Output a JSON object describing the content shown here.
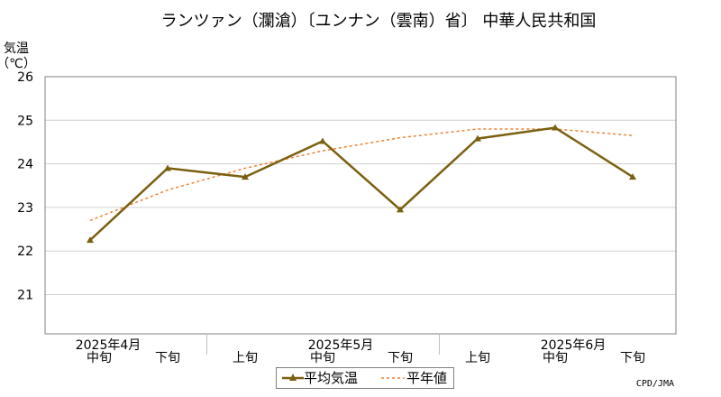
{
  "chart_data": {
    "type": "line",
    "title": "ランツァン（瀾滄）〔ユンナン（雲南）省〕 中華人民共和国",
    "ylabel": "気温",
    "yunit": "（℃）",
    "ylim": [
      20.1,
      26
    ],
    "yticks": [
      21,
      22,
      23,
      24,
      25,
      26
    ],
    "grid": true,
    "legend_position": "bottom-center",
    "x_period_labels": [
      "中旬",
      "下旬",
      "上旬",
      "中旬",
      "下旬",
      "上旬",
      "中旬",
      "下旬"
    ],
    "x_month_labels": [
      {
        "label": "2025年4月",
        "at_index": 0
      },
      {
        "label": "2025年5月",
        "at_index": 3
      },
      {
        "label": "2025年6月",
        "at_index": 6
      }
    ],
    "series": [
      {
        "name": "平均気温",
        "color": "#7a6010",
        "marker": "triangle",
        "values": [
          22.25,
          23.9,
          23.7,
          24.52,
          22.95,
          24.58,
          24.83,
          23.7
        ]
      },
      {
        "name": "平年値",
        "color": "#f08030",
        "style": "dashed",
        "values": [
          22.7,
          23.4,
          23.9,
          24.3,
          24.6,
          24.8,
          24.8,
          24.65
        ]
      }
    ]
  },
  "credit": "CPD/JMA"
}
